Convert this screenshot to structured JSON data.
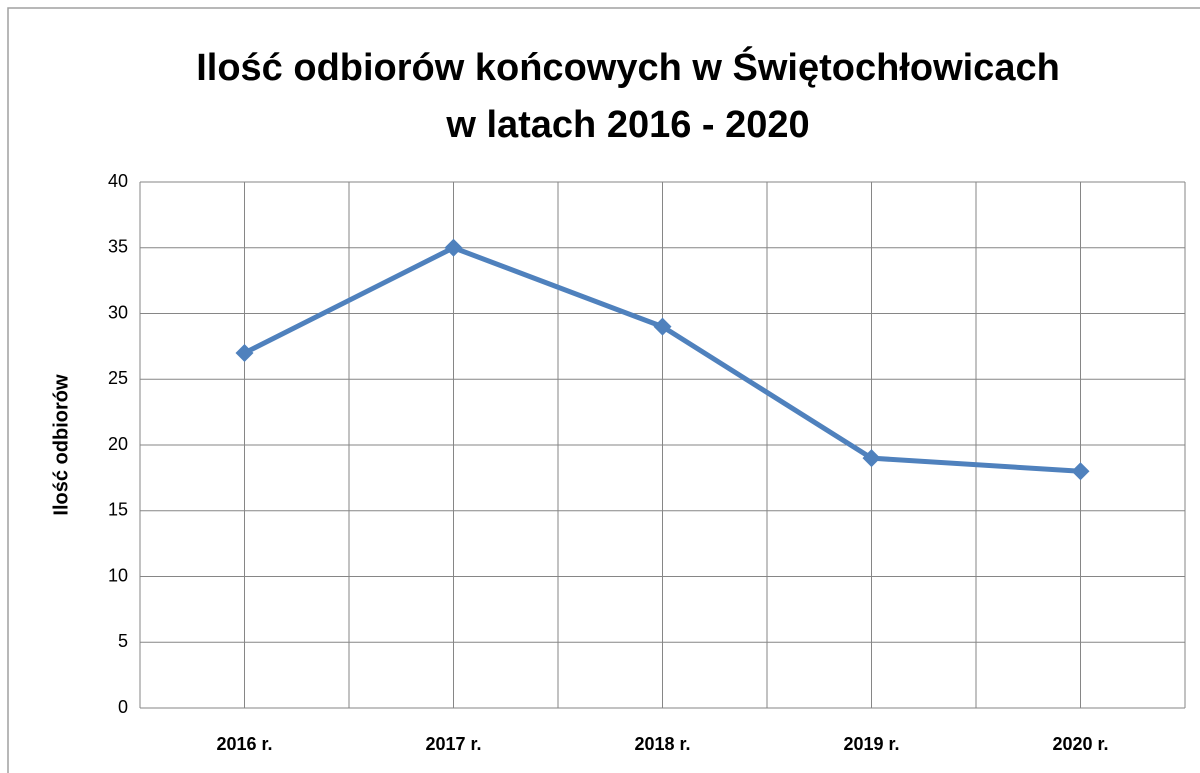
{
  "chart_data": {
    "type": "line",
    "title": [
      "Ilość odbiorów końcowych w Świętochłowicach",
      "w latach 2016 - 2020"
    ],
    "y_label": "Ilość odbiorów",
    "categories": [
      "2016 r.",
      "2017 r.",
      "2018 r.",
      "2019 r.",
      "2020 r."
    ],
    "series": [
      {
        "name": "Ilość odbiorów",
        "color": "#4f81bd",
        "values": [
          27,
          35,
          29,
          19,
          18
        ]
      }
    ],
    "ylim": [
      0,
      40
    ],
    "yticks": [
      0,
      5,
      10,
      15,
      20,
      25,
      30,
      35,
      40
    ],
    "grid": true,
    "legend": false
  }
}
